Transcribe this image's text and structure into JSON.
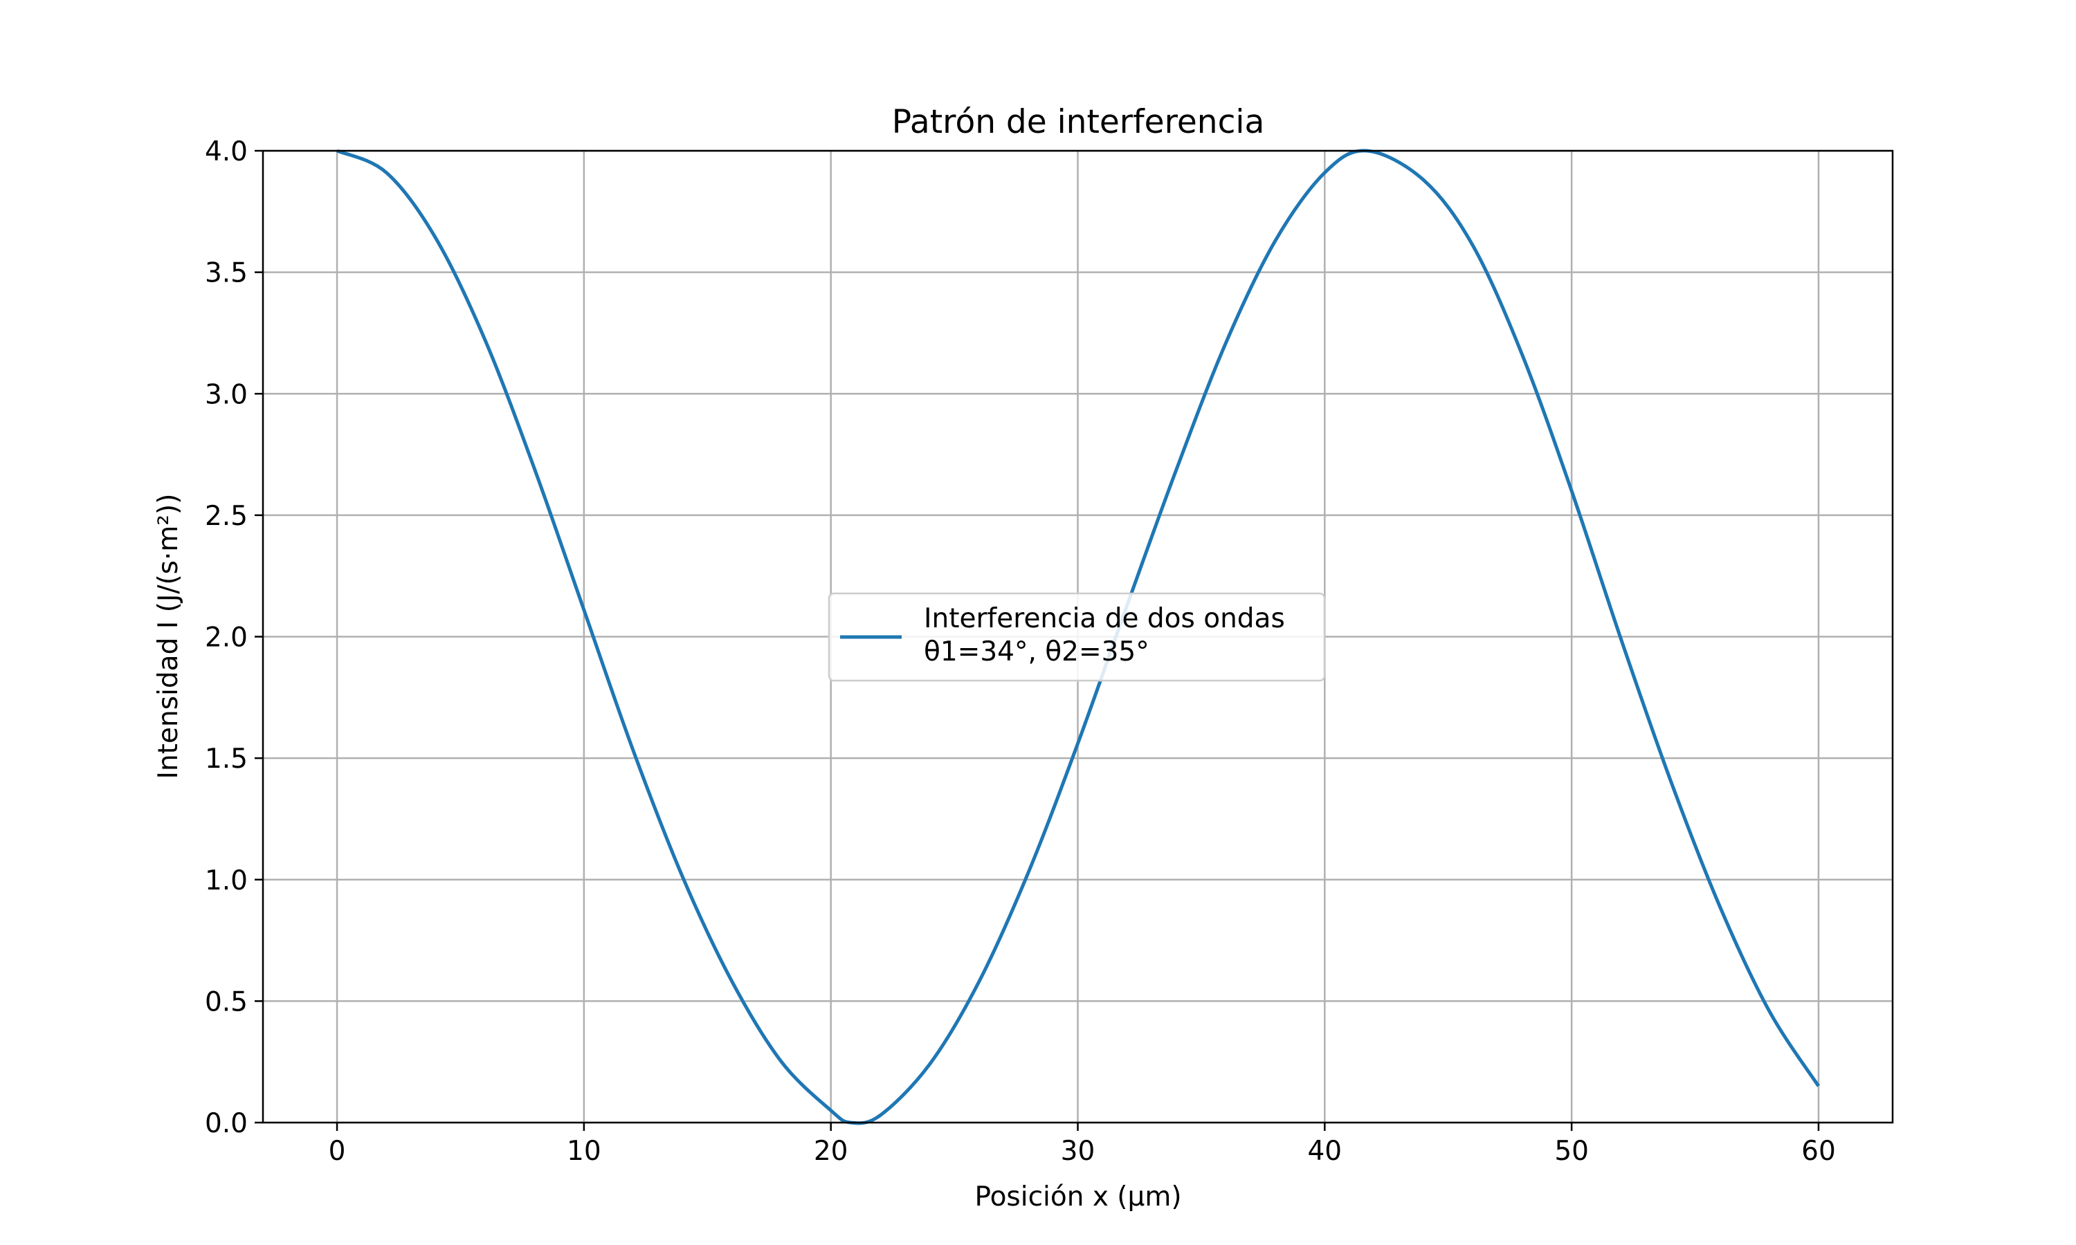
{
  "chart_data": {
    "type": "line",
    "title": "Patrón de interferencia",
    "xlabel": "Posición x (μm)",
    "ylabel": "Intensidad I (J/(s·m²))",
    "xlim": [
      -3,
      63
    ],
    "ylim": [
      0,
      4
    ],
    "x_ticks": [
      0,
      10,
      20,
      30,
      40,
      50,
      60
    ],
    "y_ticks": [
      0.0,
      0.5,
      1.0,
      1.5,
      2.0,
      2.5,
      3.0,
      3.5,
      4.0
    ],
    "x_tick_labels": [
      "0",
      "10",
      "20",
      "30",
      "40",
      "50",
      "60"
    ],
    "y_tick_labels": [
      "0.0",
      "0.5",
      "1.0",
      "1.5",
      "2.0",
      "2.5",
      "3.0",
      "3.5",
      "4.0"
    ],
    "grid": true,
    "legend_position": "center",
    "series": [
      {
        "name": "Interferencia de dos ondas",
        "legend_line2": "θ1=34°, θ2=35°",
        "color": "#1f77b4",
        "x": [
          0,
          2,
          4,
          6,
          8,
          10,
          12,
          14,
          16,
          18,
          20,
          20.8,
          22,
          24,
          26,
          28,
          30,
          32,
          34,
          36,
          38,
          40,
          41.7,
          44,
          46,
          48,
          50,
          52,
          54,
          56,
          58,
          60
        ],
        "y": [
          4.0,
          3.91,
          3.64,
          3.22,
          2.69,
          2.11,
          1.53,
          1.01,
          0.58,
          0.25,
          0.05,
          0.0,
          0.03,
          0.24,
          0.58,
          1.03,
          1.56,
          2.13,
          2.69,
          3.21,
          3.63,
          3.91,
          4.0,
          3.88,
          3.61,
          3.16,
          2.6,
          1.99,
          1.41,
          0.89,
          0.46,
          0.15
        ]
      }
    ]
  }
}
